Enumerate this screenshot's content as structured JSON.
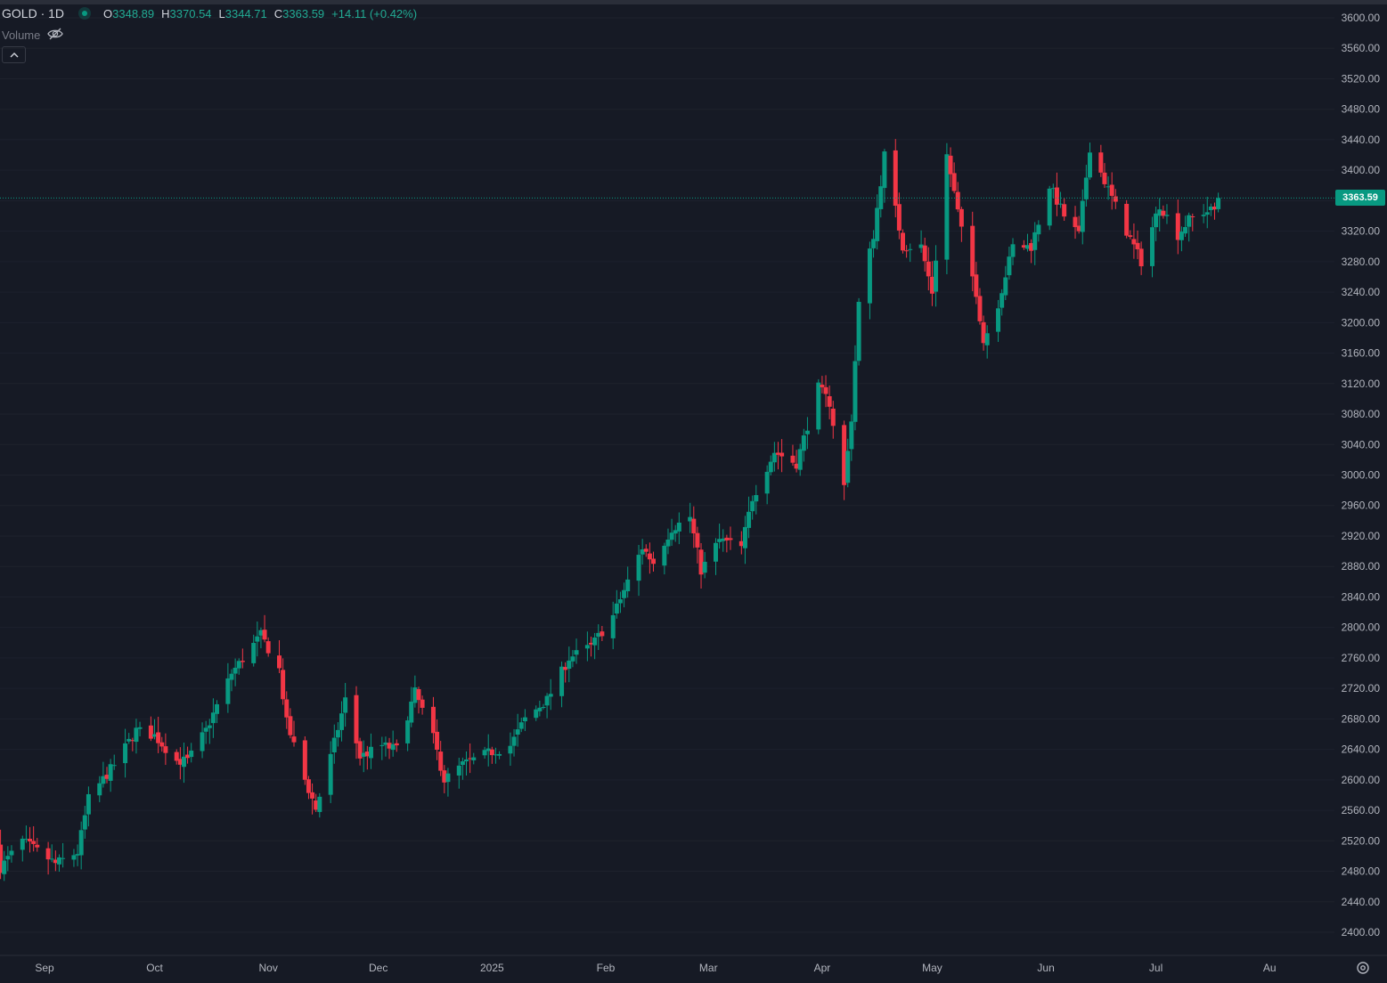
{
  "header": {
    "symbol": "GOLD · 1D",
    "open_label": "O",
    "open": "3348.89",
    "high_label": "H",
    "high": "3370.54",
    "low_label": "L",
    "low": "3344.71",
    "close_label": "C",
    "close": "3363.59",
    "change": "+14.11 (+0.42%)",
    "volume_label": "Volume"
  },
  "last_price": "3363.59",
  "colors": {
    "up": "#089981",
    "down": "#f23645",
    "background": "#161a25",
    "grid": "#1e222d",
    "text": "#b2b5be"
  },
  "icons": {
    "visibility": "eye-off-icon",
    "collapse": "chevron-up-icon",
    "settings": "settings-gear-icon"
  },
  "chart_data": {
    "type": "candlestick",
    "title": "GOLD · 1D",
    "xlabel": "",
    "ylabel": "",
    "ylim": [
      2360,
      3600
    ],
    "y_axis_position": "right",
    "grid": false,
    "y_ticks": [
      "2400.00",
      "2440.00",
      "2480.00",
      "2520.00",
      "2560.00",
      "2600.00",
      "2640.00",
      "2680.00",
      "2720.00",
      "2760.00",
      "2800.00",
      "2840.00",
      "2880.00",
      "2920.00",
      "2960.00",
      "3000.00",
      "3040.00",
      "3080.00",
      "3120.00",
      "3160.00",
      "3200.00",
      "3240.00",
      "3280.00",
      "3320.00",
      "3360.00",
      "3400.00",
      "3440.00",
      "3480.00",
      "3520.00",
      "3560.00",
      "3600.00"
    ],
    "x_labels": [
      {
        "label": "Sep",
        "date": "2024-09-01"
      },
      {
        "label": "Oct",
        "date": "2024-10-01"
      },
      {
        "label": "Nov",
        "date": "2024-11-01"
      },
      {
        "label": "Dec",
        "date": "2024-12-01"
      },
      {
        "label": "2025",
        "date": "2025-01-01"
      },
      {
        "label": "Feb",
        "date": "2025-02-01"
      },
      {
        "label": "Mar",
        "date": "2025-03-01"
      },
      {
        "label": "Apr",
        "date": "2025-04-01"
      },
      {
        "label": "May",
        "date": "2025-05-01"
      },
      {
        "label": "Jun",
        "date": "2025-06-01"
      },
      {
        "label": "Jul",
        "date": "2025-07-01"
      },
      {
        "label": "Au",
        "date": "2025-08-01"
      }
    ],
    "anchors": [
      [
        "2024-08-20",
        2515,
        2485,
        2510
      ],
      [
        "2024-08-26",
        2495,
        2520,
        2510
      ],
      [
        "2024-09-04",
        2505,
        2490,
        2495
      ],
      [
        "2024-09-10",
        2502,
        2505,
        2512
      ],
      [
        "2024-09-13",
        2540,
        2575,
        2580
      ],
      [
        "2024-09-20",
        2590,
        2620,
        2625
      ],
      [
        "2024-09-26",
        2660,
        2665,
        2670
      ],
      [
        "2024-10-01",
        2660,
        2658,
        2655
      ],
      [
        "2024-10-07",
        2640,
        2625,
        2635
      ],
      [
        "2024-10-10",
        2615,
        2625,
        2628
      ],
      [
        "2024-10-15",
        2650,
        2665,
        2675
      ],
      [
        "2024-10-22",
        2740,
        2740,
        2745
      ],
      [
        "2024-10-30",
        2775,
        2790,
        2790
      ],
      [
        "2024-11-04",
        2740,
        2745,
        2740
      ],
      [
        "2024-11-06",
        2690,
        2675,
        2660
      ],
      [
        "2024-11-11",
        2615,
        2600,
        2590
      ],
      [
        "2024-11-14",
        2565,
        2562,
        2565
      ],
      [
        "2024-11-18",
        2610,
        2630,
        2645
      ],
      [
        "2024-11-22",
        2710,
        2705,
        2700
      ],
      [
        "2024-11-26",
        2620,
        2630,
        2640
      ],
      [
        "2024-12-02",
        2640,
        2645,
        2640
      ],
      [
        "2024-12-06",
        2635,
        2640,
        2630
      ],
      [
        "2024-12-11",
        2690,
        2715,
        2715
      ],
      [
        "2024-12-16",
        2650,
        2655,
        2650
      ],
      [
        "2024-12-19",
        2595,
        2600,
        2590
      ],
      [
        "2024-12-24",
        2615,
        2620,
        2620
      ],
      [
        "2024-12-31",
        2625,
        2635,
        2625
      ],
      [
        "2025-01-06",
        2635,
        2645,
        2640
      ],
      [
        "2025-01-10",
        2665,
        2680,
        2690
      ],
      [
        "2025-01-16",
        2700,
        2705,
        2710
      ],
      [
        "2025-01-22",
        2750,
        2760,
        2760
      ],
      [
        "2025-01-28",
        2765,
        2775,
        2780
      ],
      [
        "2025-02-03",
        2810,
        2815,
        2830
      ],
      [
        "2025-02-07",
        2855,
        2860,
        2880
      ],
      [
        "2025-02-11",
        2900,
        2905,
        2910
      ],
      [
        "2025-02-14",
        2880,
        2885,
        2900
      ],
      [
        "2025-02-19",
        2930,
        2930,
        2940
      ],
      [
        "2025-02-24",
        2950,
        2945,
        2930
      ],
      [
        "2025-02-27",
        2880,
        2875,
        2860
      ],
      [
        "2025-03-04",
        2905,
        2915,
        2920
      ],
      [
        "2025-03-10",
        2910,
        2905,
        2900
      ],
      [
        "2025-03-13",
        2935,
        2970,
        2985
      ],
      [
        "2025-03-19",
        3030,
        3030,
        3040
      ],
      [
        "2025-03-25",
        3015,
        3015,
        3030
      ],
      [
        "2025-03-31",
        3100,
        3115,
        3120
      ],
      [
        "2025-04-03",
        3100,
        3095,
        3090
      ],
      [
        "2025-04-07",
        3010,
        2985,
        2975
      ],
      [
        "2025-04-09",
        2990,
        3075,
        3075
      ],
      [
        "2025-04-11",
        3230,
        3225,
        3230
      ],
      [
        "2025-04-15",
        3315,
        3315,
        3320
      ],
      [
        "2025-04-18",
        3330,
        3420,
        3420
      ],
      [
        "2025-04-23",
        3300,
        3300,
        3325
      ],
      [
        "2025-04-28",
        3310,
        3300,
        3295
      ],
      [
        "2025-05-01",
        3245,
        3240,
        3260
      ],
      [
        "2025-05-05",
        3330,
        3420,
        3420
      ],
      [
        "2025-05-09",
        3320,
        3320,
        3300
      ],
      [
        "2025-05-13",
        3250,
        3240,
        3230
      ],
      [
        "2025-05-15",
        3195,
        3175,
        3180
      ],
      [
        "2025-05-19",
        3210,
        3225,
        3230
      ],
      [
        "2025-05-23",
        3290,
        3300,
        3310
      ],
      [
        "2025-05-28",
        3300,
        3300,
        3290
      ],
      [
        "2025-06-02",
        3310,
        3380,
        3375
      ],
      [
        "2025-06-06",
        3350,
        3340,
        3325
      ],
      [
        "2025-06-10",
        3320,
        3315,
        3330
      ],
      [
        "2025-06-13",
        3375,
        3430,
        3410
      ],
      [
        "2025-06-18",
        3385,
        3375,
        3370
      ],
      [
        "2025-06-23",
        3360,
        3320,
        3325
      ],
      [
        "2025-06-27",
        3315,
        3280,
        3290
      ],
      [
        "2025-07-02",
        3345,
        3355,
        3345
      ],
      [
        "2025-07-07",
        3330,
        3315,
        3320
      ],
      [
        "2025-07-10",
        3320,
        3335,
        3350
      ],
      [
        "2025-07-14",
        3355,
        3345,
        3340
      ],
      [
        "2025-07-17",
        3325,
        3348,
        3349
      ],
      [
        "2025-07-18",
        3349,
        3363.59,
        3363.59
      ]
    ],
    "last": {
      "date": "2025-07-18",
      "open": 3348.89,
      "high": 3370.54,
      "low": 3344.71,
      "close": 3363.59
    }
  }
}
